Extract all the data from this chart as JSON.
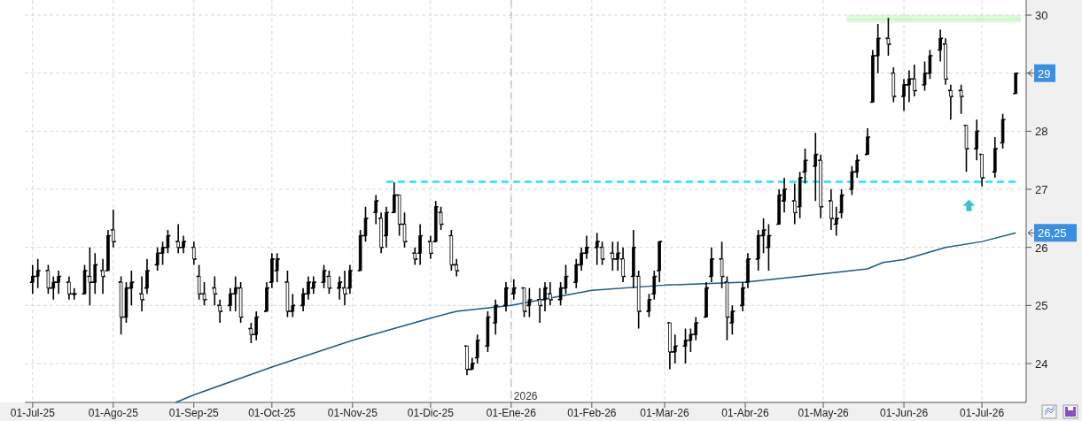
{
  "chart_data": {
    "type": "candlestick",
    "grid": true,
    "xlim": [
      "2025-06-28",
      "2026-07-18"
    ],
    "ylim": [
      23.33,
      30.26
    ],
    "xticks": [
      {
        "value": "2025-07-01",
        "label": "01-Jul-25"
      },
      {
        "value": "2025-08-01",
        "label": "01-Ago-25"
      },
      {
        "value": "2025-09-01",
        "label": "01-Sep-25"
      },
      {
        "value": "2025-10-01",
        "label": "01-Oct-25"
      },
      {
        "value": "2025-11-01",
        "label": "01-Nov-25"
      },
      {
        "value": "2025-12-01",
        "label": "01-Dic-25"
      },
      {
        "value": "2026-01-01",
        "label": "01-Ene-26"
      },
      {
        "value": "2026-02-01",
        "label": "01-Feb-26"
      },
      {
        "value": "2026-03-01",
        "label": "01-Mar-26"
      },
      {
        "value": "2026-04-01",
        "label": "01-Abr-26"
      },
      {
        "value": "2026-05-01",
        "label": "01-May-26"
      },
      {
        "value": "2026-06-01",
        "label": "01-Jun-26"
      },
      {
        "value": "2026-07-01",
        "label": "01-Jul-26"
      }
    ],
    "yticks": [
      24,
      25,
      26,
      27,
      28,
      29,
      30
    ],
    "color": "#000000",
    "x": [
      "2025-07-01",
      "2025-07-03",
      "2025-07-07",
      "2025-07-09",
      "2025-07-11",
      "2025-07-15",
      "2025-07-17",
      "2025-07-21",
      "2025-07-23",
      "2025-07-25",
      "2025-07-28",
      "2025-07-30",
      "2025-08-01",
      "2025-08-04",
      "2025-08-06",
      "2025-08-08",
      "2025-08-12",
      "2025-08-14",
      "2025-08-18",
      "2025-08-20",
      "2025-08-22",
      "2025-08-26",
      "2025-08-28",
      "2025-09-01",
      "2025-09-03",
      "2025-09-05",
      "2025-09-09",
      "2025-09-11",
      "2025-09-15",
      "2025-09-17",
      "2025-09-19",
      "2025-09-23",
      "2025-09-25",
      "2025-09-29",
      "2025-10-01",
      "2025-10-03",
      "2025-10-07",
      "2025-10-09",
      "2025-10-13",
      "2025-10-15",
      "2025-10-17",
      "2025-10-21",
      "2025-10-23",
      "2025-10-27",
      "2025-10-29",
      "2025-10-31",
      "2025-11-04",
      "2025-11-06",
      "2025-11-10",
      "2025-11-12",
      "2025-11-14",
      "2025-11-17",
      "2025-11-19",
      "2025-11-21",
      "2025-11-25",
      "2025-11-27",
      "2025-12-01",
      "2025-12-03",
      "2025-12-05",
      "2025-12-09",
      "2025-12-11",
      "2025-12-15",
      "2025-12-17",
      "2025-12-19",
      "2025-12-23",
      "2025-12-26",
      "2025-12-30",
      "2026-01-02",
      "2026-01-06",
      "2026-01-08",
      "2026-01-12",
      "2026-01-14",
      "2026-01-16",
      "2026-01-20",
      "2026-01-22",
      "2026-01-26",
      "2026-01-28",
      "2026-01-30",
      "2026-02-03",
      "2026-02-05",
      "2026-02-09",
      "2026-02-11",
      "2026-02-13",
      "2026-02-17",
      "2026-02-19",
      "2026-02-23",
      "2026-02-25",
      "2026-02-27",
      "2026-03-03",
      "2026-03-05",
      "2026-03-09",
      "2026-03-11",
      "2026-03-13",
      "2026-03-17",
      "2026-03-19",
      "2026-03-23",
      "2026-03-25",
      "2026-03-27",
      "2026-03-31",
      "2026-04-02",
      "2026-04-06",
      "2026-04-08",
      "2026-04-10",
      "2026-04-14",
      "2026-04-16",
      "2026-04-20",
      "2026-04-22",
      "2026-04-24",
      "2026-04-28",
      "2026-04-30",
      "2026-05-04",
      "2026-05-06",
      "2026-05-08",
      "2026-05-12",
      "2026-05-14",
      "2026-05-18",
      "2026-05-20",
      "2026-05-22",
      "2026-05-26",
      "2026-05-28",
      "2026-06-01",
      "2026-06-03",
      "2026-06-05",
      "2026-06-09",
      "2026-06-11",
      "2026-06-15",
      "2026-06-17",
      "2026-06-19",
      "2026-06-23",
      "2026-06-25",
      "2026-06-29",
      "2026-07-01",
      "2026-07-06",
      "2026-07-09",
      "2026-07-14"
    ],
    "ohlc": [
      [
        25.4,
        25.7,
        25.2,
        25.5
      ],
      [
        25.5,
        25.8,
        25.3,
        25.6
      ],
      [
        25.6,
        25.7,
        25.2,
        25.3
      ],
      [
        25.3,
        25.5,
        25.1,
        25.4
      ],
      [
        25.4,
        25.6,
        25.2,
        25.5
      ],
      [
        25.4,
        25.5,
        25.1,
        25.2
      ],
      [
        25.2,
        25.3,
        25.1,
        25.2
      ],
      [
        25.2,
        25.7,
        25.2,
        25.6
      ],
      [
        25.5,
        26.0,
        25.0,
        25.4
      ],
      [
        25.4,
        25.9,
        25.2,
        25.7
      ],
      [
        25.6,
        25.8,
        25.2,
        25.5
      ],
      [
        25.6,
        26.3,
        25.6,
        26.2
      ],
      [
        26.3,
        26.65,
        26.0,
        26.1
      ],
      [
        25.4,
        25.5,
        24.5,
        24.8
      ],
      [
        24.8,
        25.4,
        24.7,
        25.3
      ],
      [
        25.3,
        25.6,
        25.0,
        25.4
      ],
      [
        25.2,
        25.5,
        24.9,
        25.1
      ],
      [
        25.3,
        25.8,
        25.2,
        25.6
      ],
      [
        25.7,
        26.0,
        25.6,
        25.9
      ],
      [
        25.9,
        26.1,
        25.7,
        26.0
      ],
      [
        26.0,
        26.3,
        25.9,
        26.2
      ],
      [
        26.1,
        26.4,
        25.9,
        26.0
      ],
      [
        26.0,
        26.2,
        25.9,
        26.1
      ],
      [
        26.0,
        26.1,
        25.7,
        25.8
      ],
      [
        25.5,
        25.7,
        25.1,
        25.2
      ],
      [
        25.2,
        25.4,
        25.0,
        25.1
      ],
      [
        25.3,
        25.5,
        25.0,
        25.2
      ],
      [
        25.0,
        25.1,
        24.7,
        24.9
      ],
      [
        25.0,
        25.3,
        24.9,
        25.2
      ],
      [
        25.2,
        25.5,
        24.9,
        25.3
      ],
      [
        25.3,
        25.4,
        24.7,
        24.8
      ],
      [
        24.6,
        24.7,
        24.35,
        24.5
      ],
      [
        24.5,
        24.9,
        24.4,
        24.8
      ],
      [
        24.9,
        25.4,
        24.9,
        25.3
      ],
      [
        25.4,
        25.9,
        25.3,
        25.8
      ],
      [
        25.6,
        25.9,
        25.4,
        25.8
      ],
      [
        25.4,
        25.6,
        24.8,
        24.9
      ],
      [
        24.9,
        25.2,
        24.8,
        25.0
      ],
      [
        25.0,
        25.3,
        24.9,
        25.2
      ],
      [
        25.2,
        25.5,
        25.1,
        25.4
      ],
      [
        25.3,
        25.5,
        25.2,
        25.4
      ],
      [
        25.4,
        25.7,
        25.3,
        25.6
      ],
      [
        25.5,
        25.6,
        25.2,
        25.3
      ],
      [
        25.3,
        25.5,
        25.1,
        25.4
      ],
      [
        25.3,
        25.6,
        25.0,
        25.2
      ],
      [
        25.3,
        25.7,
        25.2,
        25.6
      ],
      [
        25.6,
        26.3,
        25.6,
        26.2
      ],
      [
        26.2,
        26.7,
        26.1,
        26.5
      ],
      [
        26.6,
        26.9,
        26.4,
        26.8
      ],
      [
        26.5,
        26.6,
        25.9,
        26.0
      ],
      [
        26.2,
        26.7,
        26.0,
        26.6
      ],
      [
        26.6,
        27.12,
        26.6,
        26.9
      ],
      [
        26.9,
        26.9,
        26.2,
        26.4
      ],
      [
        26.4,
        26.6,
        26.0,
        26.1
      ],
      [
        25.9,
        26.0,
        25.7,
        25.8
      ],
      [
        25.9,
        26.4,
        25.7,
        26.2
      ],
      [
        26.1,
        26.2,
        25.8,
        25.9
      ],
      [
        26.1,
        26.8,
        26.1,
        26.7
      ],
      [
        26.6,
        26.7,
        26.3,
        26.4
      ],
      [
        26.2,
        26.3,
        25.6,
        25.7
      ],
      [
        25.7,
        25.8,
        25.5,
        25.6
      ],
      [
        24.3,
        24.3,
        23.8,
        23.9
      ],
      [
        23.9,
        24.1,
        23.9,
        24.0
      ],
      [
        24.1,
        24.5,
        24.0,
        24.4
      ],
      [
        24.3,
        24.9,
        24.2,
        24.8
      ],
      [
        24.7,
        25.1,
        24.5,
        25.0
      ],
      [
        25.0,
        25.4,
        24.9,
        25.3
      ],
      [
        25.2,
        25.45,
        25.1,
        25.3
      ],
      [
        25.3,
        25.3,
        24.8,
        24.9
      ],
      [
        25.0,
        25.3,
        24.8,
        25.1
      ],
      [
        25.1,
        25.3,
        24.7,
        25.0
      ],
      [
        25.1,
        25.4,
        24.9,
        25.3
      ],
      [
        25.2,
        25.4,
        25.0,
        25.1
      ],
      [
        25.1,
        25.4,
        25.0,
        25.3
      ],
      [
        25.3,
        25.7,
        25.2,
        25.5
      ],
      [
        25.4,
        25.8,
        25.3,
        25.7
      ],
      [
        25.7,
        26.0,
        25.6,
        25.9
      ],
      [
        25.9,
        26.2,
        25.8,
        26.0
      ],
      [
        26.0,
        26.25,
        25.7,
        26.1
      ],
      [
        26.0,
        26.1,
        25.7,
        25.8
      ],
      [
        25.9,
        26.1,
        25.6,
        25.8
      ],
      [
        25.8,
        26.1,
        25.6,
        25.9
      ],
      [
        25.8,
        26.0,
        25.4,
        25.5
      ],
      [
        25.5,
        26.3,
        25.3,
        26.0
      ],
      [
        25.5,
        25.6,
        24.6,
        24.9
      ],
      [
        24.9,
        25.2,
        24.8,
        25.1
      ],
      [
        25.2,
        25.6,
        25.1,
        25.5
      ],
      [
        25.6,
        26.1,
        25.4,
        26.1
      ],
      [
        24.7,
        24.7,
        23.9,
        24.2
      ],
      [
        24.2,
        24.5,
        24.0,
        24.3
      ],
      [
        24.3,
        24.6,
        24.0,
        24.4
      ],
      [
        24.4,
        24.6,
        24.2,
        24.5
      ],
      [
        24.5,
        24.8,
        24.4,
        24.7
      ],
      [
        24.8,
        25.4,
        24.8,
        25.3
      ],
      [
        25.5,
        26.0,
        25.4,
        25.8
      ],
      [
        25.8,
        26.1,
        25.3,
        25.5
      ],
      [
        25.4,
        25.5,
        24.4,
        24.8
      ],
      [
        24.7,
        25.0,
        24.5,
        24.9
      ],
      [
        25.0,
        25.4,
        24.9,
        25.3
      ],
      [
        25.4,
        25.9,
        25.3,
        25.8
      ],
      [
        25.8,
        26.3,
        25.6,
        26.2
      ],
      [
        26.2,
        26.5,
        25.9,
        26.3
      ],
      [
        26.0,
        26.4,
        25.6,
        26.2
      ],
      [
        26.4,
        27.0,
        26.4,
        26.9
      ],
      [
        26.8,
        27.2,
        26.6,
        27.0
      ],
      [
        26.8,
        27.1,
        26.4,
        26.6
      ],
      [
        26.7,
        27.3,
        26.5,
        27.2
      ],
      [
        27.3,
        27.7,
        27.1,
        27.5
      ],
      [
        27.4,
        27.97,
        26.8,
        27.6
      ],
      [
        27.5,
        27.6,
        26.5,
        26.7
      ],
      [
        26.8,
        27.0,
        26.3,
        26.5
      ],
      [
        26.4,
        26.7,
        26.2,
        26.5
      ],
      [
        26.6,
        27.0,
        26.5,
        26.9
      ],
      [
        27.0,
        27.4,
        26.9,
        27.3
      ],
      [
        27.3,
        27.6,
        27.2,
        27.5
      ],
      [
        27.6,
        28.05,
        27.6,
        27.9
      ],
      [
        28.5,
        29.4,
        28.5,
        29.3
      ],
      [
        29.3,
        29.85,
        29.0,
        29.6
      ],
      [
        29.6,
        29.95,
        29.3,
        29.5
      ],
      [
        29.0,
        29.1,
        28.5,
        28.6
      ],
      [
        28.6,
        28.9,
        28.35,
        28.8
      ],
      [
        28.8,
        29.05,
        28.5,
        28.9
      ],
      [
        28.9,
        29.15,
        28.6,
        28.7
      ],
      [
        28.8,
        29.2,
        28.7,
        29.0
      ],
      [
        29.0,
        29.4,
        28.9,
        29.3
      ],
      [
        29.4,
        29.75,
        29.2,
        29.6
      ],
      [
        29.5,
        29.6,
        28.8,
        28.9
      ],
      [
        28.7,
        28.8,
        28.2,
        28.6
      ],
      [
        28.7,
        28.8,
        28.3,
        28.6
      ],
      [
        28.1,
        28.1,
        27.3,
        27.7
      ],
      [
        27.7,
        28.2,
        27.5,
        28.0
      ],
      [
        27.6,
        27.6,
        27.05,
        27.2
      ],
      [
        27.3,
        27.9,
        27.2,
        27.7
      ],
      [
        27.8,
        28.3,
        27.7,
        28.2
      ],
      [
        28.65,
        29.0,
        28.65,
        29.0
      ]
    ],
    "series": [
      {
        "type": "line",
        "color": "#1a5a85",
        "line_style": "solid",
        "x": [
          "2025-08-25",
          "2025-09-01",
          "2025-10-01",
          "2025-11-01",
          "2025-12-01",
          "2025-12-11",
          "2026-01-01",
          "2026-02-01",
          "2026-03-01",
          "2026-04-01",
          "2026-04-22",
          "2026-05-08",
          "2026-05-18",
          "2026-05-24",
          "2026-06-01",
          "2026-06-17",
          "2026-07-01",
          "2026-07-14"
        ],
        "values": [
          23.33,
          23.46,
          23.94,
          24.4,
          24.78,
          24.9,
          25.0,
          25.26,
          25.35,
          25.4,
          25.5,
          25.58,
          25.63,
          25.74,
          25.79,
          26.0,
          26.1,
          26.25
        ]
      },
      {
        "type": "line",
        "color": "#22e5ef",
        "line_style": "dashed",
        "x": [
          "2025-11-14",
          "2026-07-14"
        ],
        "values": [
          27.13,
          27.13
        ]
      },
      {
        "type": "line",
        "color": "#c8f5c0",
        "line_style": "solid",
        "x": [
          "2026-05-10",
          "2026-07-16"
        ],
        "values": [
          29.93,
          29.93
        ],
        "lower": [
          29.87,
          29.87
        ],
        "upper": [
          30.0,
          30.0
        ]
      }
    ],
    "ref_lines": [
      {
        "axis": "x",
        "value": "2026-01-01",
        "label": "2026",
        "color": "#bbbbbb",
        "line_style": "dashed"
      }
    ],
    "annotations": [
      "29",
      "26,25"
    ]
  }
}
